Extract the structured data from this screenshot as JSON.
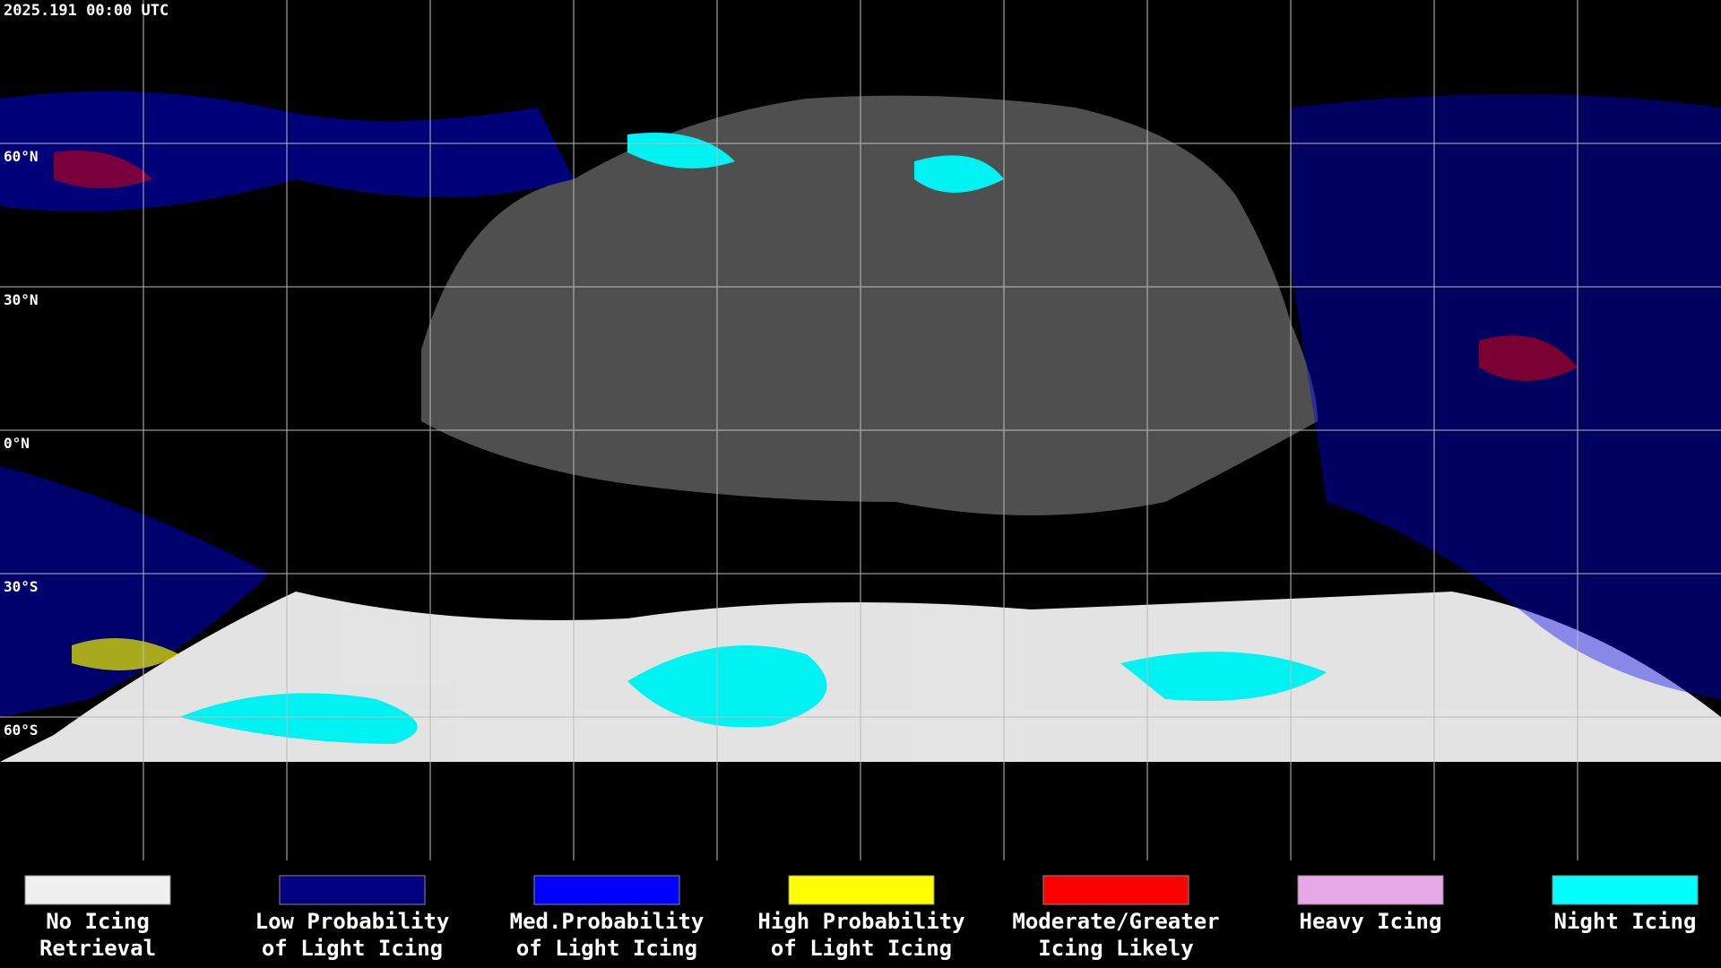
{
  "timestamp": "2025.191 00:00 UTC",
  "latitude_labels": [
    "60°N",
    "30°N",
    "0°N",
    "30°S",
    "60°S"
  ],
  "legend": [
    {
      "color": "#f0f0f0",
      "label_lines": [
        "No Icing",
        "Retrieval"
      ]
    },
    {
      "color": "#000080",
      "label_lines": [
        "Low Probability",
        "of Light Icing"
      ]
    },
    {
      "color": "#0000ff",
      "label_lines": [
        "Med.Probability",
        "of Light Icing"
      ]
    },
    {
      "color": "#ffff00",
      "label_lines": [
        "High Probability",
        "of Light Icing"
      ]
    },
    {
      "color": "#ff0000",
      "label_lines": [
        "Moderate/Greater",
        "Icing Likely"
      ]
    },
    {
      "color": "#e8a8e8",
      "label_lines": [
        "Heavy Icing"
      ]
    },
    {
      "color": "#00ffff",
      "label_lines": [
        "Night Icing"
      ]
    }
  ]
}
